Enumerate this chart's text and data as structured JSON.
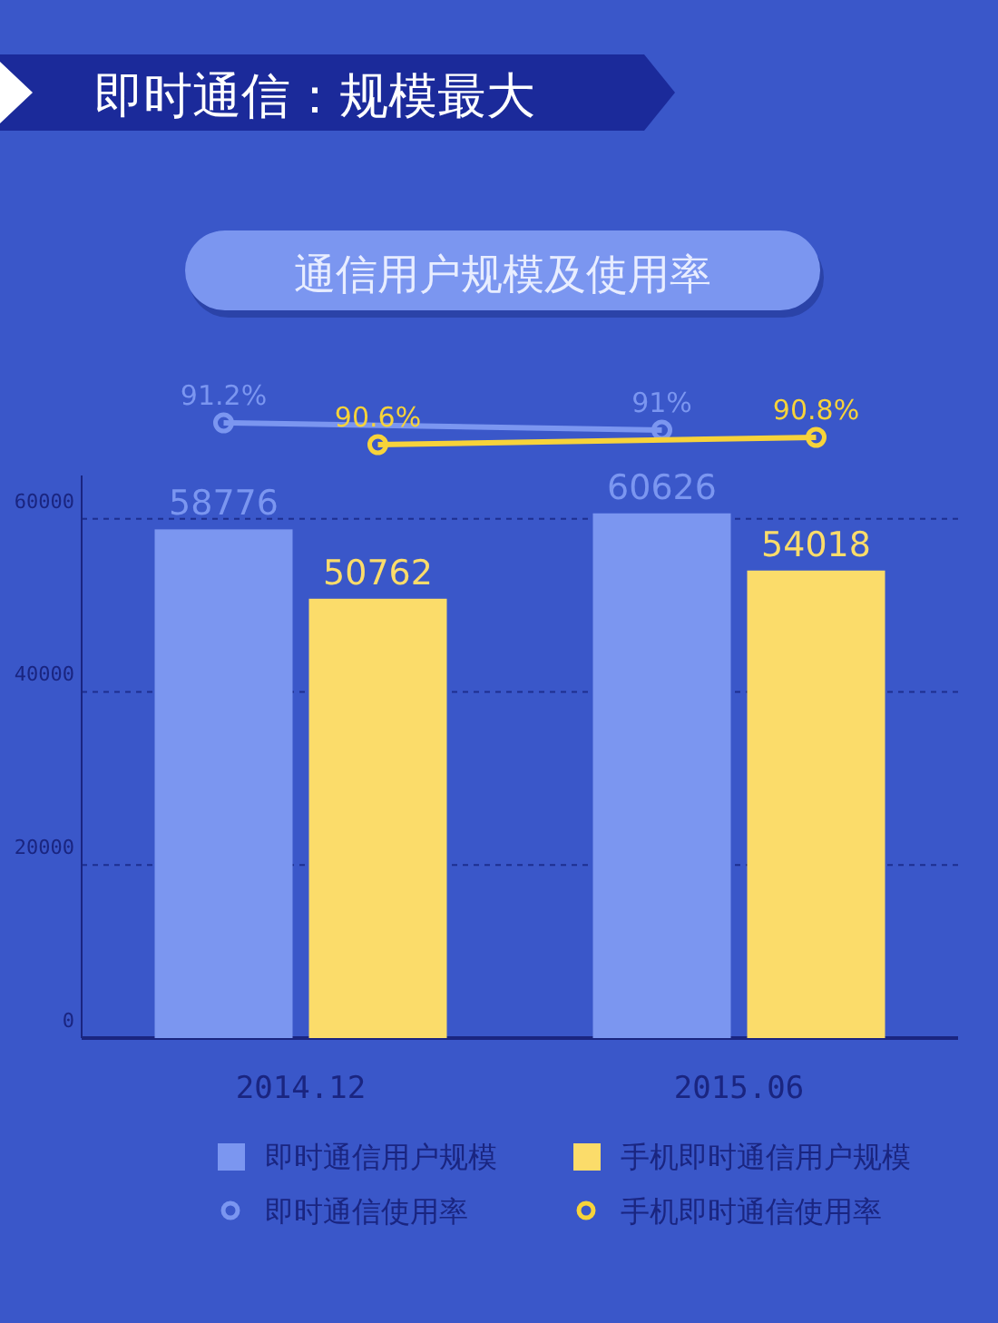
{
  "chart_data": [
    {
      "type": "line",
      "title": "即时通信：规模最大",
      "subtitle": "通信用户规模及使用率",
      "categories": [
        null,
        null
      ],
      "series": [
        {
          "name": "即时通信使用率",
          "color": "#7b96f0",
          "values": [
            91.2,
            91
          ],
          "value_labels": [
            "91.2%",
            "91%"
          ]
        },
        {
          "name": "手机即时通信使用率",
          "color": "#f7d33a",
          "values": [
            90.6,
            90.8
          ],
          "value_labels": [
            "90.6%",
            "90.8%"
          ]
        }
      ],
      "legend": "bottom",
      "marker": "circle",
      "line_style": "solid"
    },
    {
      "type": "bar",
      "categories": [
        "2014.12",
        "2015.06"
      ],
      "series": [
        {
          "name": "即时通信用户规模",
          "color": "#7b96f0",
          "values": [
            58776,
            60626
          ]
        },
        {
          "name": "手机即时通信用户规模",
          "color": "#fbdc6a",
          "values": [
            50762,
            54018
          ]
        }
      ],
      "ylim": [
        0,
        65000
      ],
      "yticks": [
        0,
        20000,
        40000,
        60000
      ],
      "grid": "y",
      "legend": "bottom",
      "data_labels": true
    }
  ]
}
